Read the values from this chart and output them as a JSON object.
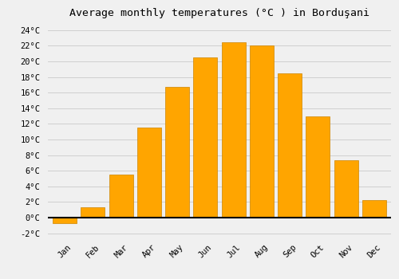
{
  "title": "Average monthly temperatures (°C ) in Borduşani",
  "months": [
    "Jan",
    "Feb",
    "Mar",
    "Apr",
    "May",
    "Jun",
    "Jul",
    "Aug",
    "Sep",
    "Oct",
    "Nov",
    "Dec"
  ],
  "values": [
    -0.7,
    1.3,
    5.5,
    11.5,
    16.7,
    20.5,
    22.5,
    22.0,
    18.5,
    13.0,
    7.3,
    2.2
  ],
  "bar_color": "#FFA500",
  "bar_edge_color": "#CC8400",
  "ylim": [
    -2.5,
    25
  ],
  "yticks": [
    -2,
    0,
    2,
    4,
    6,
    8,
    10,
    12,
    14,
    16,
    18,
    20,
    22,
    24
  ],
  "ytick_labels": [
    "-2°C",
    "0°C",
    "2°C",
    "4°C",
    "6°C",
    "8°C",
    "10°C",
    "12°C",
    "14°C",
    "16°C",
    "18°C",
    "20°C",
    "22°C",
    "24°C"
  ],
  "background_color": "#f0f0f0",
  "grid_color": "#d0d0d0",
  "title_fontsize": 9.5,
  "tick_fontsize": 7.5,
  "bar_width": 0.85
}
